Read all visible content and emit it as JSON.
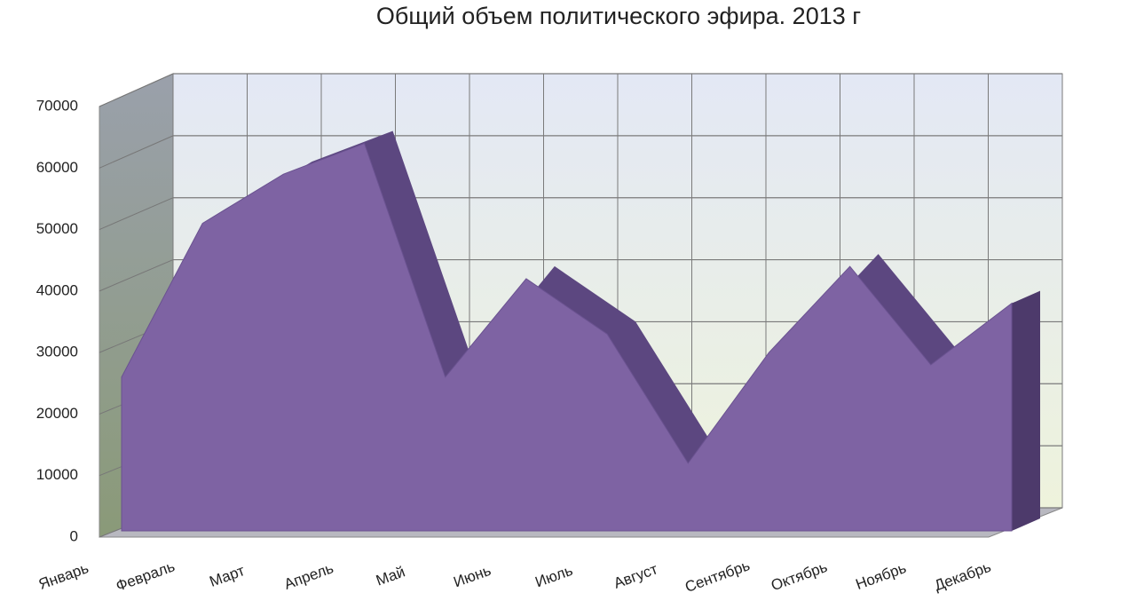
{
  "chart_data": {
    "type": "area",
    "title": "Общий объем политического эфира. 2013 г",
    "categories": [
      "Январь",
      "Февраль",
      "Март",
      "Апрель",
      "Май",
      "Июнь",
      "Июль",
      "Август",
      "Сентябрь",
      "Октябрь",
      "Ноябрь",
      "Декабрь"
    ],
    "values": [
      25000,
      50000,
      58000,
      63000,
      25000,
      41000,
      32000,
      11000,
      29000,
      43000,
      27000,
      37000
    ],
    "color": "#7e63a3",
    "ylim": [
      0,
      70000
    ],
    "yticks": [
      0,
      10000,
      20000,
      30000,
      40000,
      50000,
      60000,
      70000
    ],
    "grid": true
  }
}
